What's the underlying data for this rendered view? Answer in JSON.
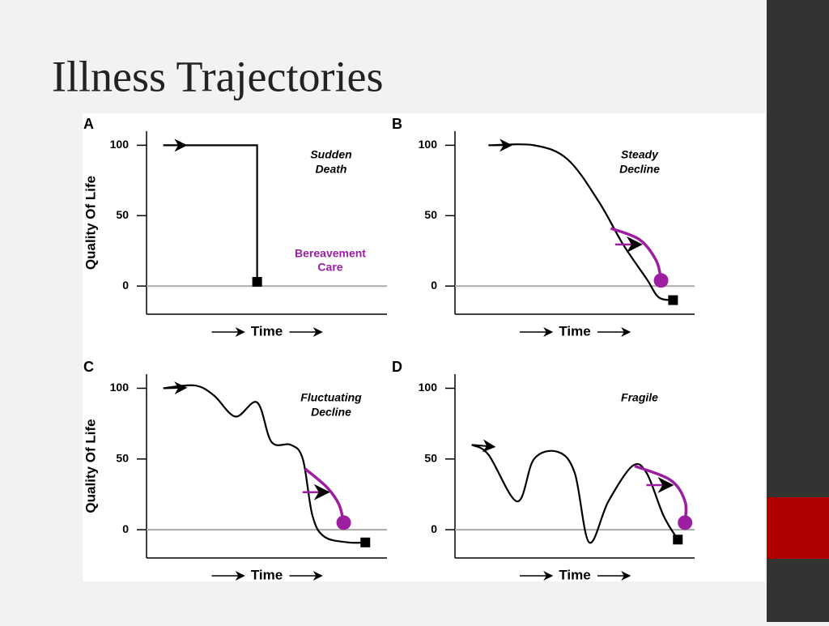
{
  "title": "Illness Trajectories",
  "chart_data": [
    {
      "type": "line",
      "panel": "A",
      "ylabel": "Quality Of Life",
      "xlabel": "Time",
      "annotation": [
        "Sudden",
        "Death"
      ],
      "annotation2": [
        "Bereavement",
        "Care"
      ],
      "xlim": [
        0,
        10
      ],
      "ylim": [
        -20,
        110
      ],
      "yticks": [
        0,
        50,
        100
      ],
      "series": [
        {
          "color": "#000000",
          "x": [
            0.7,
            4.6,
            4.6
          ],
          "values": [
            100,
            100,
            3
          ]
        }
      ]
    },
    {
      "type": "line",
      "panel": "B",
      "xlabel": "Time",
      "annotation": [
        "Steady",
        "Decline"
      ],
      "xlim": [
        0,
        10
      ],
      "ylim": [
        -20,
        110
      ],
      "yticks": [
        0,
        50,
        100
      ],
      "series": [
        {
          "color": "#000000",
          "x": [
            1.4,
            3.3,
            4.7,
            6.0,
            7.0,
            8.0,
            8.5,
            9.1
          ],
          "values": [
            100,
            100,
            90,
            60,
            30,
            5,
            -8,
            -10
          ]
        },
        {
          "color": "#9b1fa0",
          "x": [
            6.5,
            7.7,
            8.4,
            8.6
          ],
          "values": [
            41,
            33,
            18,
            4
          ]
        }
      ]
    },
    {
      "type": "line",
      "panel": "C",
      "ylabel": "Quality Of Life",
      "xlabel": "Time",
      "annotation": [
        "Fluctuating",
        "Decline"
      ],
      "xlim": [
        0,
        10
      ],
      "ylim": [
        -20,
        110
      ],
      "yticks": [
        0,
        50,
        100
      ],
      "series": [
        {
          "color": "#000000",
          "x": [
            0.7,
            2.0,
            2.8,
            3.7,
            4.6,
            5.2,
            6.0,
            6.5,
            6.9,
            7.4,
            8.4,
            9.1
          ],
          "values": [
            100,
            102,
            95,
            80,
            90,
            62,
            60,
            50,
            10,
            -5,
            -9,
            -9
          ]
        },
        {
          "color": "#9b1fa0",
          "x": [
            6.6,
            7.5,
            8.0,
            8.2
          ],
          "values": [
            43,
            30,
            18,
            5
          ]
        }
      ]
    },
    {
      "type": "line",
      "panel": "D",
      "xlabel": "Time",
      "annotation": [
        "Fragile"
      ],
      "xlim": [
        0,
        10
      ],
      "ylim": [
        -20,
        110
      ],
      "yticks": [
        0,
        50,
        100
      ],
      "series": [
        {
          "color": "#000000",
          "x": [
            0.7,
            1.4,
            2.6,
            3.3,
            4.3,
            5.0,
            5.6,
            6.4,
            7.4,
            8.0,
            8.7,
            9.3
          ],
          "values": [
            60,
            53,
            20,
            50,
            55,
            40,
            -9,
            20,
            45,
            40,
            10,
            -7
          ]
        },
        {
          "color": "#9b1fa0",
          "x": [
            7.5,
            9.0,
            9.6,
            9.6
          ],
          "values": [
            45,
            35,
            20,
            5
          ]
        }
      ]
    }
  ]
}
